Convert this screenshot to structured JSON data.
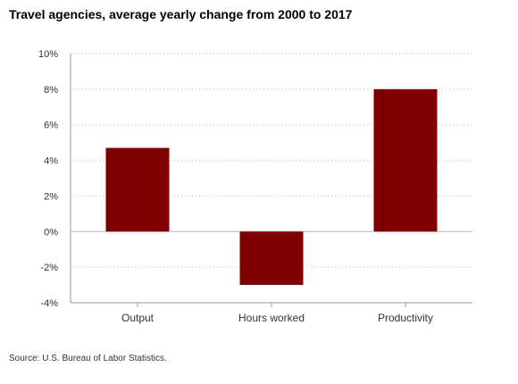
{
  "chart_data": {
    "type": "bar",
    "title": "Travel agencies, average yearly change from 2000 to 2017",
    "xlabel": "",
    "ylabel": "",
    "categories": [
      "Output",
      "Hours worked",
      "Productivity"
    ],
    "values": [
      4.7,
      -3.0,
      8.0
    ],
    "ylim": [
      -4,
      10
    ],
    "yticks": [
      10,
      8,
      6,
      4,
      2,
      0,
      -2,
      -4
    ],
    "ytick_labels": [
      "10%",
      "8%",
      "6%",
      "4%",
      "2%",
      "0%",
      "-2%",
      "-4%"
    ],
    "grid": true,
    "bar_color": "#800000",
    "legend": "none"
  },
  "source": "Source: U.S. Bureau of Labor Statistics."
}
